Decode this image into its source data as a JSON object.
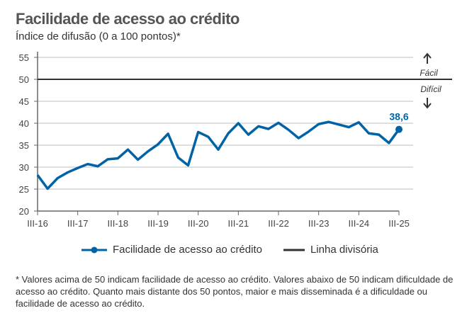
{
  "chart_data": {
    "type": "line",
    "title": "Facilidade de acesso ao crédito",
    "subtitle": "Índice de difusão (0 a 100 pontos)*",
    "ylim": [
      20,
      55
    ],
    "yticks": [
      20,
      25,
      30,
      35,
      40,
      45,
      50,
      55
    ],
    "xticks": [
      "III-16",
      "III-17",
      "III-18",
      "III-19",
      "III-20",
      "III-21",
      "III-22",
      "III-23",
      "III-24",
      "III-25"
    ],
    "x": [
      "III-16",
      "IV-16",
      "I-17",
      "II-17",
      "III-17",
      "IV-17",
      "I-18",
      "II-18",
      "III-18",
      "IV-18",
      "I-19",
      "II-19",
      "III-19",
      "IV-19",
      "I-20",
      "II-20",
      "III-20",
      "IV-20",
      "I-21",
      "II-21",
      "III-21",
      "IV-21",
      "I-22",
      "II-22",
      "III-22",
      "IV-22",
      "I-23",
      "II-23",
      "III-23",
      "IV-23",
      "I-24",
      "II-24",
      "III-24",
      "IV-24",
      "I-25",
      "II-25",
      "III-25"
    ],
    "series": [
      {
        "name": "Facilidade de acesso ao crédito",
        "color": "#0063a6",
        "values": [
          28.2,
          25.1,
          27.5,
          28.8,
          29.8,
          30.7,
          30.2,
          31.8,
          32.0,
          34.0,
          31.7,
          33.6,
          35.2,
          37.6,
          32.2,
          30.4,
          38.0,
          36.9,
          34.0,
          37.7,
          40.0,
          37.4,
          39.3,
          38.7,
          40.1,
          38.5,
          36.6,
          38.1,
          39.8,
          40.3,
          39.7,
          39.1,
          40.2,
          37.7,
          37.4,
          35.5,
          38.6
        ]
      },
      {
        "name": "Linha divisória",
        "color": "#333333",
        "value": 50
      }
    ],
    "last_label": "38,6",
    "annotations": {
      "up": "Fácil",
      "down": "Difícil"
    },
    "grid": true,
    "legend": "bottom"
  },
  "note": "* Valores acima de 50 indicam facilidade de acesso ao crédito. Valores abaixo de 50 indicam dificuldade de acesso ao crédito. Quanto mais distante dos 50 pontos, maior e mais disseminada é a dificuldade ou facilidade de acesso ao crédito."
}
